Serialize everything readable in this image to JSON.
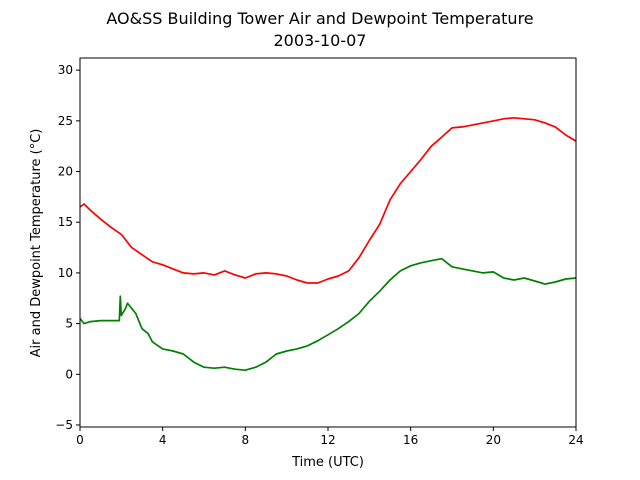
{
  "chart_data": {
    "type": "line",
    "title": "AO&SS Building Tower Air and Dewpoint Temperature",
    "subtitle": "2003-10-07",
    "xlabel": "Time (UTC)",
    "ylabel": "Air and Dewpoint Temperature (°C)",
    "xlim": [
      0,
      24
    ],
    "ylim": [
      -5.2,
      31.2
    ],
    "xticks": [
      0,
      4,
      8,
      12,
      16,
      20,
      24
    ],
    "yticks": [
      -5,
      0,
      5,
      10,
      15,
      20,
      25,
      30
    ],
    "grid": false,
    "series": [
      {
        "color": "#ff0000",
        "x": [
          0,
          0.2,
          0.5,
          1,
          1.5,
          2,
          2.5,
          3,
          3.5,
          4,
          4.5,
          5,
          5.5,
          6,
          6.5,
          7,
          7.5,
          8,
          8.5,
          9,
          9.5,
          10,
          10.5,
          11,
          11.5,
          12,
          12.5,
          13,
          13.5,
          14,
          14.5,
          15,
          15.5,
          16,
          16.5,
          17,
          17.5,
          18,
          18.5,
          19,
          19.5,
          20,
          20.5,
          21,
          21.5,
          22,
          22.5,
          23,
          23.5,
          24
        ],
        "y": [
          16.5,
          16.8,
          16.2,
          15.3,
          14.5,
          13.8,
          12.5,
          11.8,
          11.1,
          10.8,
          10.4,
          10.0,
          9.9,
          10.0,
          9.8,
          10.2,
          9.8,
          9.5,
          9.9,
          10.0,
          9.9,
          9.7,
          9.3,
          9.0,
          9.0,
          9.4,
          9.7,
          10.2,
          11.5,
          13.2,
          14.8,
          17.2,
          18.8,
          20.0,
          21.2,
          22.5,
          23.4,
          24.3,
          24.4,
          24.6,
          24.8,
          25.0,
          25.2,
          25.3,
          25.2,
          25.1,
          24.8,
          24.4,
          23.6,
          23.0
        ]
      },
      {
        "color": "#008000",
        "x": [
          0,
          0.2,
          0.5,
          1,
          1.5,
          1.9,
          1.95,
          2.0,
          2.2,
          2.3,
          2.5,
          2.7,
          2.9,
          3.0,
          3.3,
          3.5,
          4,
          4.5,
          5,
          5.5,
          6,
          6.5,
          7,
          7.5,
          8,
          8.5,
          9,
          9.5,
          10,
          10.5,
          11,
          11.5,
          12,
          12.5,
          13,
          13.5,
          14,
          14.5,
          15,
          15.5,
          16,
          16.5,
          17,
          17.5,
          18,
          18.5,
          19,
          19.5,
          20,
          20.5,
          21,
          21.5,
          22,
          22.5,
          23,
          23.5,
          24
        ],
        "y": [
          5.5,
          5.0,
          5.2,
          5.3,
          5.3,
          5.3,
          7.7,
          5.8,
          6.5,
          7.0,
          6.5,
          6.0,
          5.0,
          4.5,
          4.0,
          3.2,
          2.5,
          2.3,
          2.0,
          1.2,
          0.7,
          0.6,
          0.7,
          0.5,
          0.4,
          0.7,
          1.2,
          2.0,
          2.3,
          2.5,
          2.8,
          3.3,
          3.9,
          4.5,
          5.2,
          6.0,
          7.2,
          8.2,
          9.3,
          10.2,
          10.7,
          11.0,
          11.2,
          11.4,
          10.6,
          10.4,
          10.2,
          10.0,
          10.1,
          9.5,
          9.3,
          9.5,
          9.2,
          8.9,
          9.1,
          9.4,
          9.5
        ]
      }
    ]
  }
}
